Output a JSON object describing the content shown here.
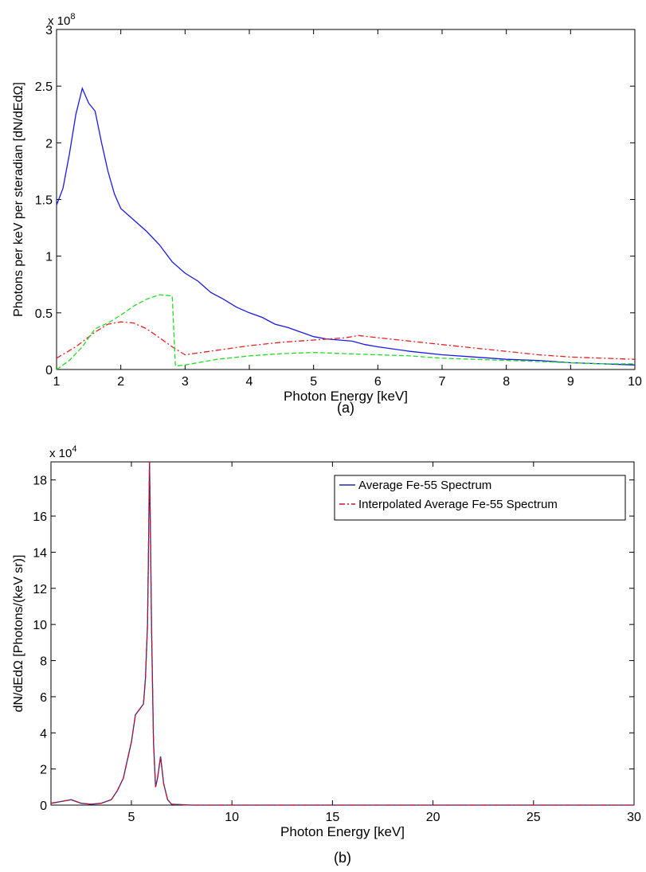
{
  "chart_data": [
    {
      "type": "line",
      "panel_label": "(a)",
      "xlabel": "Photon Energy [keV]",
      "ylabel": "Photons per keV per steradian [dN/dEdΩ]",
      "y_multiplier": "x 10",
      "y_exponent": "8",
      "xlim": [
        1,
        10
      ],
      "ylim": [
        0,
        3
      ],
      "x_ticks": [
        "1",
        "2",
        "3",
        "4",
        "5",
        "6",
        "7",
        "8",
        "9",
        "10"
      ],
      "y_ticks": [
        "0",
        "0.5",
        "1",
        "1.5",
        "2",
        "2.5",
        "3"
      ],
      "grid": false,
      "series": [
        {
          "color": "#1a1ae6",
          "dash": "solid",
          "x": [
            1.0,
            1.1,
            1.2,
            1.3,
            1.4,
            1.5,
            1.6,
            1.7,
            1.8,
            1.9,
            2.0,
            2.2,
            2.4,
            2.6,
            2.8,
            3.0,
            3.2,
            3.4,
            3.6,
            3.8,
            4.0,
            4.2,
            4.4,
            4.6,
            4.8,
            5.0,
            5.2,
            5.4,
            5.6,
            5.8,
            6.0,
            6.5,
            7.0,
            7.5,
            8.0,
            8.5,
            9.0,
            9.5,
            10.0
          ],
          "y": [
            1.45,
            1.6,
            1.9,
            2.25,
            2.48,
            2.35,
            2.28,
            2.0,
            1.75,
            1.55,
            1.42,
            1.32,
            1.22,
            1.1,
            0.95,
            0.85,
            0.78,
            0.68,
            0.62,
            0.55,
            0.5,
            0.46,
            0.4,
            0.37,
            0.33,
            0.29,
            0.27,
            0.26,
            0.25,
            0.22,
            0.2,
            0.16,
            0.13,
            0.11,
            0.09,
            0.08,
            0.06,
            0.05,
            0.04
          ]
        },
        {
          "color": "#e62020",
          "dash": "dashdot",
          "x": [
            1.0,
            1.3,
            1.6,
            1.8,
            2.0,
            2.2,
            2.4,
            2.6,
            2.8,
            3.0,
            3.5,
            4.0,
            4.5,
            5.0,
            5.5,
            5.7,
            6.0,
            6.5,
            7.0,
            7.5,
            8.0,
            8.5,
            9.0,
            9.5,
            10.0
          ],
          "y": [
            0.1,
            0.2,
            0.33,
            0.4,
            0.42,
            0.41,
            0.36,
            0.28,
            0.2,
            0.13,
            0.17,
            0.21,
            0.24,
            0.26,
            0.28,
            0.3,
            0.28,
            0.25,
            0.22,
            0.19,
            0.16,
            0.13,
            0.11,
            0.1,
            0.09
          ]
        },
        {
          "color": "#22dd22",
          "dash": "dashed",
          "x": [
            1.0,
            1.2,
            1.4,
            1.6,
            1.8,
            2.0,
            2.2,
            2.4,
            2.6,
            2.8,
            2.85,
            3.0,
            3.5,
            4.0,
            4.5,
            5.0,
            5.5,
            6.0,
            6.5,
            7.0,
            7.5,
            8.0,
            8.5,
            9.0,
            9.5,
            10.0
          ],
          "y": [
            0.0,
            0.08,
            0.2,
            0.36,
            0.41,
            0.48,
            0.56,
            0.62,
            0.66,
            0.65,
            0.03,
            0.04,
            0.09,
            0.12,
            0.14,
            0.15,
            0.14,
            0.13,
            0.12,
            0.1,
            0.09,
            0.08,
            0.07,
            0.06,
            0.05,
            0.05
          ]
        }
      ]
    },
    {
      "type": "line",
      "panel_label": "(b)",
      "xlabel": "Photon Energy [keV]",
      "ylabel": "dN/dEdΩ  [Photons/(keV sr)]",
      "y_multiplier": "x 10",
      "y_exponent": "4",
      "xlim": [
        1,
        30
      ],
      "ylim": [
        0,
        19
      ],
      "x_ticks": [
        "5",
        "10",
        "15",
        "20",
        "25",
        "30"
      ],
      "y_ticks": [
        "0",
        "2",
        "4",
        "6",
        "8",
        "10",
        "12",
        "14",
        "16",
        "18"
      ],
      "grid": false,
      "legend_position": "top-right",
      "series": [
        {
          "name": "Average Fe-55 Spectrum",
          "color": "#2a2a8a",
          "dash": "solid",
          "x": [
            1.0,
            1.5,
            2.0,
            2.5,
            3.0,
            3.5,
            4.0,
            4.3,
            4.6,
            4.8,
            5.0,
            5.2,
            5.4,
            5.6,
            5.7,
            5.8,
            5.85,
            5.9,
            5.95,
            6.0,
            6.1,
            6.2,
            6.3,
            6.45,
            6.6,
            6.8,
            7.0,
            8.0,
            10.0,
            15.0,
            20.0,
            25.0,
            30.0
          ],
          "y": [
            0.1,
            0.2,
            0.3,
            0.1,
            0.05,
            0.1,
            0.3,
            0.8,
            1.5,
            2.5,
            3.5,
            5.0,
            5.3,
            5.6,
            7.0,
            10.0,
            14.0,
            19.0,
            15.0,
            10.0,
            3.5,
            1.0,
            1.5,
            2.7,
            1.2,
            0.3,
            0.05,
            0.0,
            0.0,
            0.0,
            0.0,
            0.0,
            0.0
          ]
        },
        {
          "name": "Interpolated Average Fe-55 Spectrum",
          "color": "#c8102e",
          "dash": "dashdot",
          "x": [
            1.0,
            1.5,
            2.0,
            2.5,
            3.0,
            3.5,
            4.0,
            4.3,
            4.6,
            4.8,
            5.0,
            5.2,
            5.4,
            5.6,
            5.7,
            5.8,
            5.85,
            5.9,
            5.95,
            6.0,
            6.1,
            6.2,
            6.3,
            6.45,
            6.6,
            6.8,
            7.0,
            8.0,
            10.0,
            15.0,
            20.0,
            25.0,
            30.0
          ],
          "y": [
            0.1,
            0.2,
            0.3,
            0.1,
            0.05,
            0.1,
            0.3,
            0.8,
            1.5,
            2.5,
            3.5,
            5.0,
            5.3,
            5.6,
            7.0,
            10.0,
            14.0,
            19.0,
            15.0,
            10.0,
            3.5,
            1.0,
            1.5,
            2.7,
            1.2,
            0.3,
            0.05,
            0.0,
            0.0,
            0.0,
            0.0,
            0.0,
            0.0
          ]
        }
      ]
    }
  ]
}
